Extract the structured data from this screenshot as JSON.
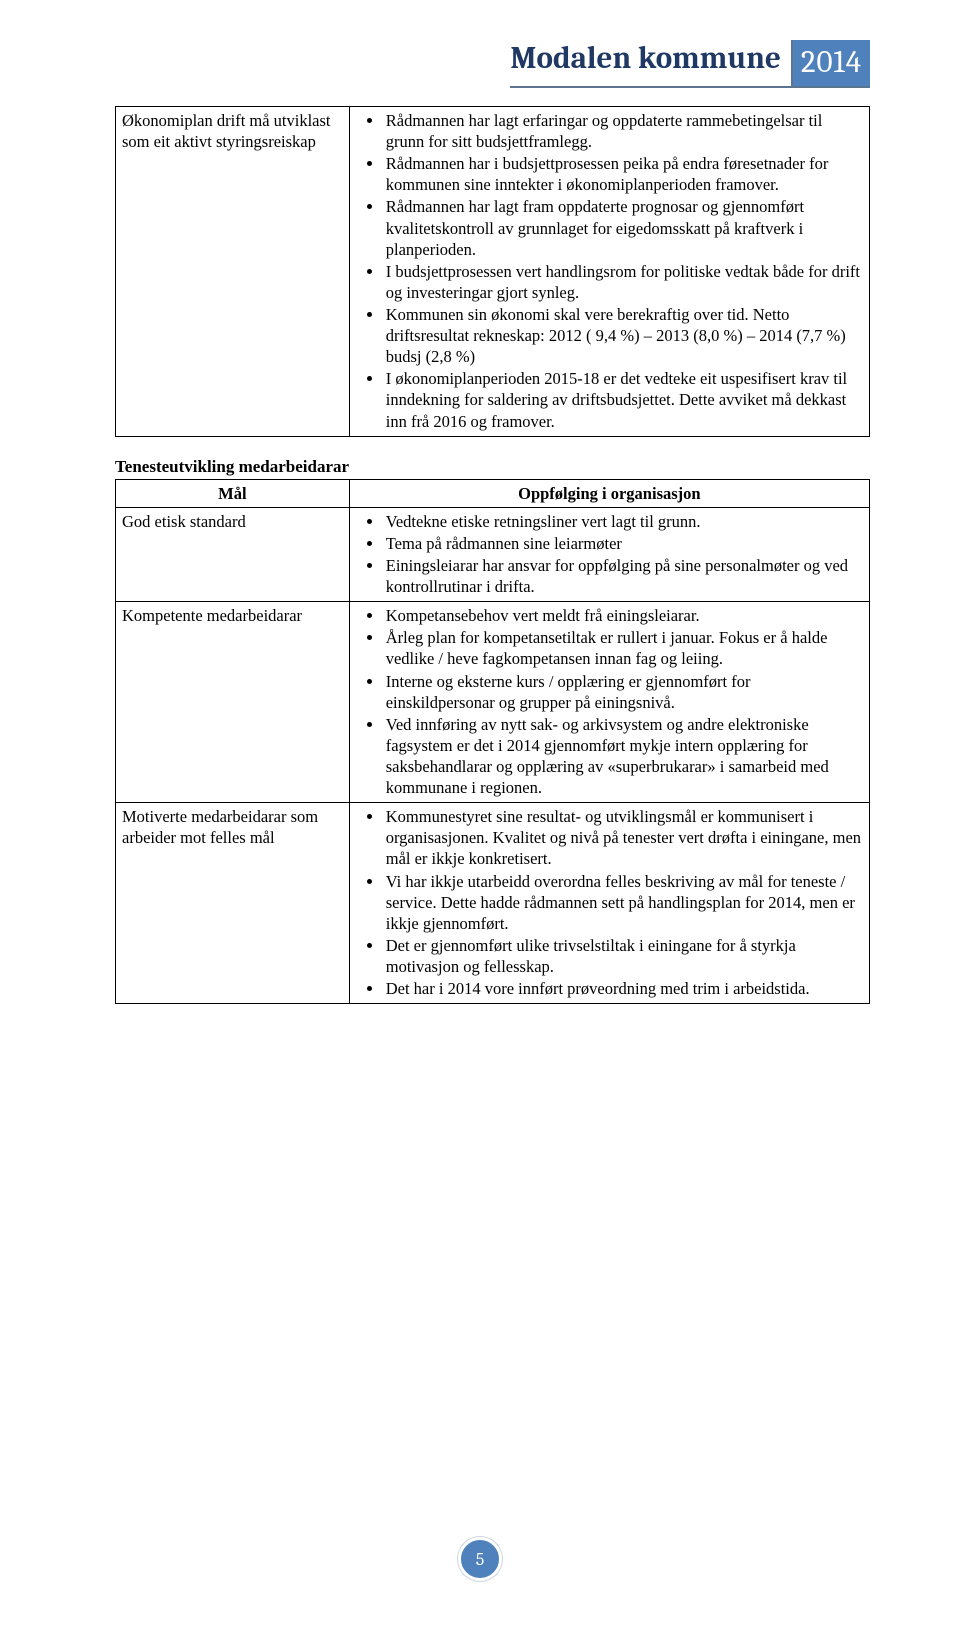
{
  "header": {
    "title": "Modalen kommune",
    "year": "2014",
    "accent_color": "#4f81bd",
    "rule_color": "#5b7590",
    "title_color": "#1f3864"
  },
  "page_number": "5",
  "table1": {
    "left": "Økonomiplan drift må utviklast som eit aktivt styringsreiskap",
    "bullets": [
      "Rådmannen har lagt erfaringar og oppdaterte rammebetingelsar til grunn for sitt budsjettframlegg.",
      "Rådmannen har i budsjettprosessen peika på endra føresetnader for kommunen sine inntekter i økonomiplanperioden framover.",
      "Rådmannen har lagt fram oppdaterte prognosar og gjennomført kvalitetskontroll av grunnlaget for eigedomsskatt på kraftverk i planperioden.",
      "I budsjettprosessen vert handlingsrom for politiske vedtak både for drift og investeringar gjort synleg.",
      "Kommunen sin økonomi skal vere berekraftig over tid. Netto driftsresultat rekneskap:  2012 ( 9,4 %) – 2013  (8,0 %) – 2014  (7,7 %) budsj (2,8 %)",
      "I økonomiplanperioden 2015-18 er det vedteke eit uspesifisert krav til inndekning for saldering av driftsbudsjettet. Dette avviket må dekkast inn frå 2016 og framover."
    ]
  },
  "section_heading": "Tenesteutvikling medarbeidarar",
  "table2": {
    "header_left": "Mål",
    "header_right": "Oppfølging i organisasjon",
    "rows": [
      {
        "left": "God etisk standard",
        "bullets": [
          "Vedtekne etiske retningsliner vert lagt til grunn.",
          "Tema på rådmannen sine leiarmøter",
          "Einingsleiarar har ansvar for oppfølging på sine personalmøter og ved kontrollrutinar i drifta."
        ]
      },
      {
        "left": "Kompetente medarbeidarar",
        "bullets": [
          "Kompetansebehov vert meldt frå einingsleiarar.",
          "Årleg plan for kompetansetiltak er rullert i januar. Fokus er å halde vedlike / heve fagkompetansen innan fag og leiing.",
          "Interne og eksterne kurs / opplæring er gjennomført for einskildpersonar og grupper på einingsnivå.",
          "Ved innføring av nytt sak- og arkivsystem og andre elektroniske fagsystem er det i 2014 gjennomført mykje intern opplæring for saksbehandlarar og opplæring av «superbrukarar»  i samarbeid med kommunane i regionen."
        ]
      },
      {
        "left": "Motiverte medarbeidarar som arbeider mot felles mål",
        "bullets": [
          "Kommunestyret sine resultat- og utviklingsmål er kommunisert i organisasjonen. Kvalitet og nivå på tenester vert drøfta i einingane, men mål er ikkje konkretisert.",
          "Vi har ikkje utarbeidd overordna felles beskriving av mål for teneste / service.  Dette hadde rådmannen sett på handlingsplan for 2014, men er ikkje gjennomført.",
          "Det er gjennomført ulike trivselstiltak i einingane for å styrkja motivasjon og fellesskap.",
          "Det har i 2014 vore innført prøveordning med trim i arbeidstida."
        ]
      }
    ]
  }
}
